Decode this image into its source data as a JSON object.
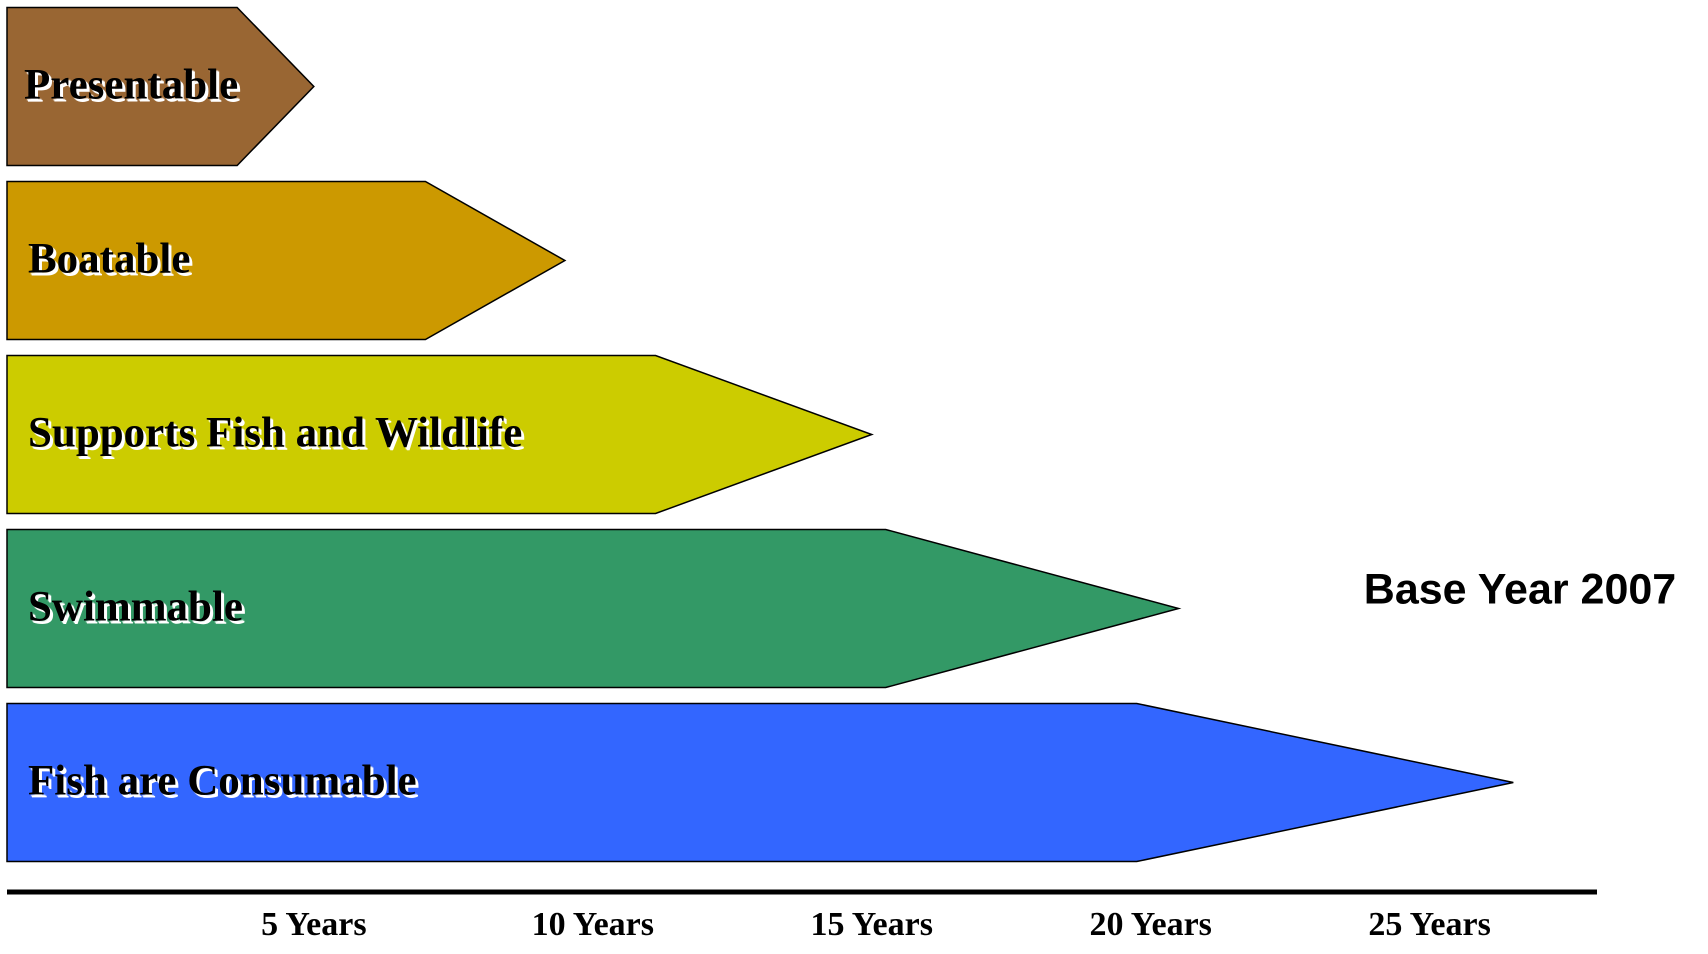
{
  "chart_data": {
    "type": "arrow-bar",
    "categories": [
      "Presentable",
      "Boatable",
      "Supports Fish and Wildlife",
      "Swimmable",
      "Fish are Consumable"
    ],
    "values": [
      5,
      9.5,
      15,
      20.5,
      26.5
    ],
    "colors": [
      "#996633",
      "#cc9900",
      "#cccc00",
      "#339966",
      "#3366ff"
    ],
    "xlim": [
      -0.5,
      28
    ],
    "xticks": [
      {
        "value": 5,
        "label": "5 Years"
      },
      {
        "value": 10,
        "label": "10 Years"
      },
      {
        "value": 15,
        "label": "15 Years"
      },
      {
        "value": 20,
        "label": "20 Years"
      },
      {
        "value": 25,
        "label": "25 Years"
      }
    ],
    "annotation": "Base Year 2007"
  }
}
